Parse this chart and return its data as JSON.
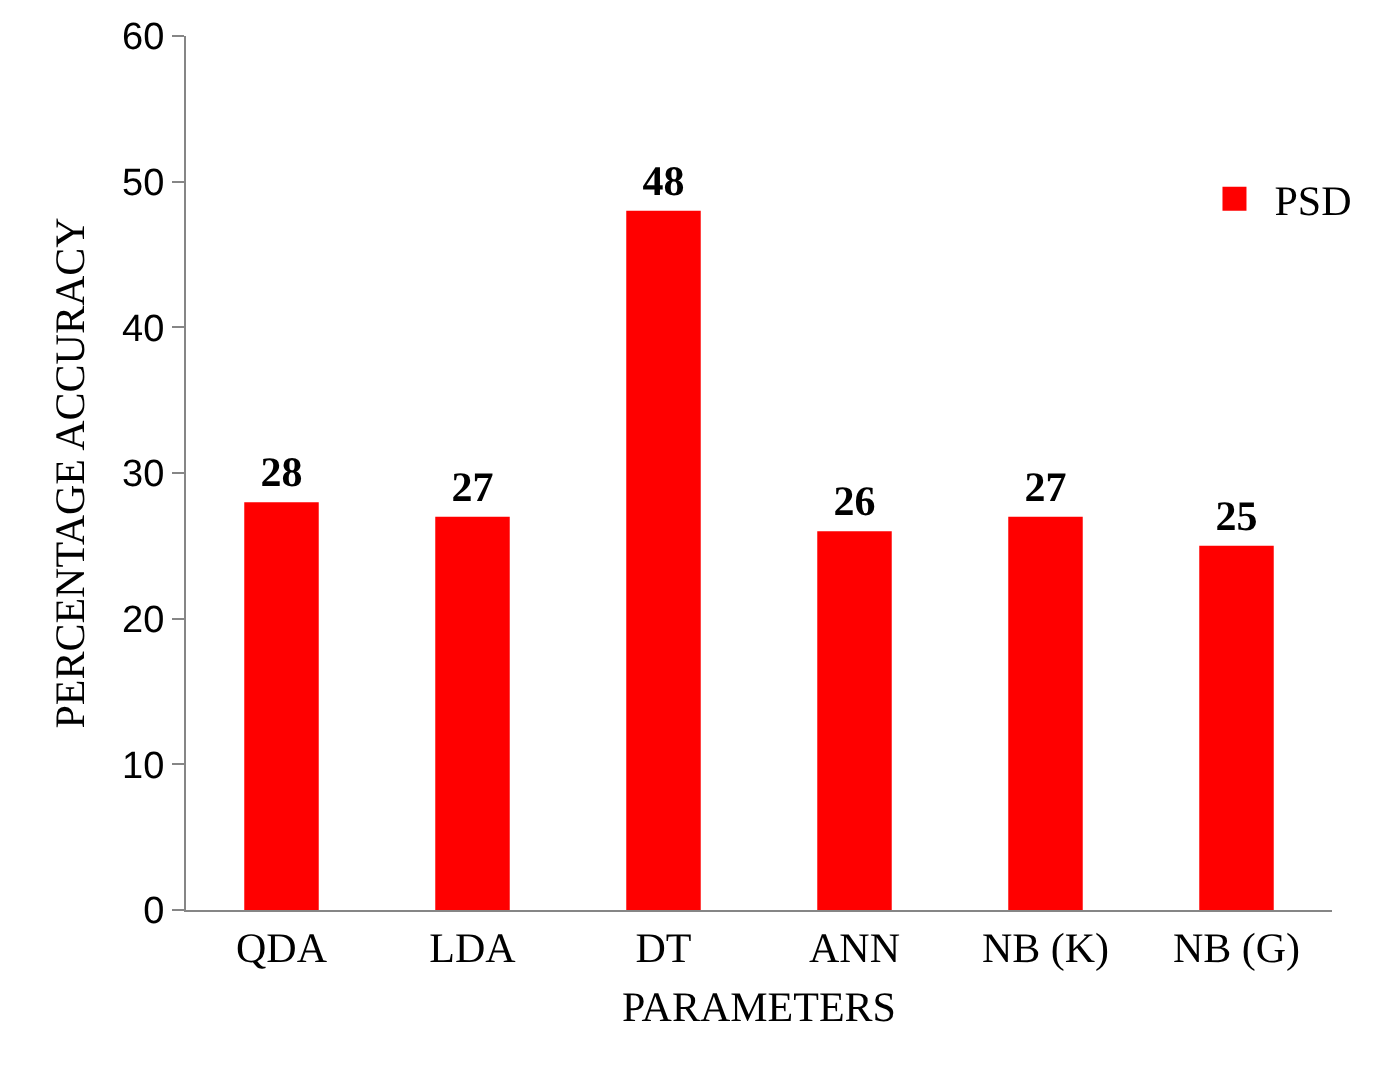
{
  "chart_data": {
    "type": "bar",
    "xlabel": "PARAMETERS",
    "ylabel": "PERCENTAGE ACCURACY",
    "categories": [
      "QDA",
      "LDA",
      "DT",
      "ANN",
      "NB (K)",
      "NB (G)"
    ],
    "series": [
      {
        "name": "PSD",
        "color": "#ff0000",
        "values": [
          28,
          27,
          48,
          26,
          27,
          25
        ]
      }
    ],
    "ylim": [
      0,
      60
    ],
    "yticks": [
      0,
      10,
      20,
      30,
      40,
      50,
      60
    ],
    "grid": false,
    "legend": "top right",
    "data_labels": true
  }
}
